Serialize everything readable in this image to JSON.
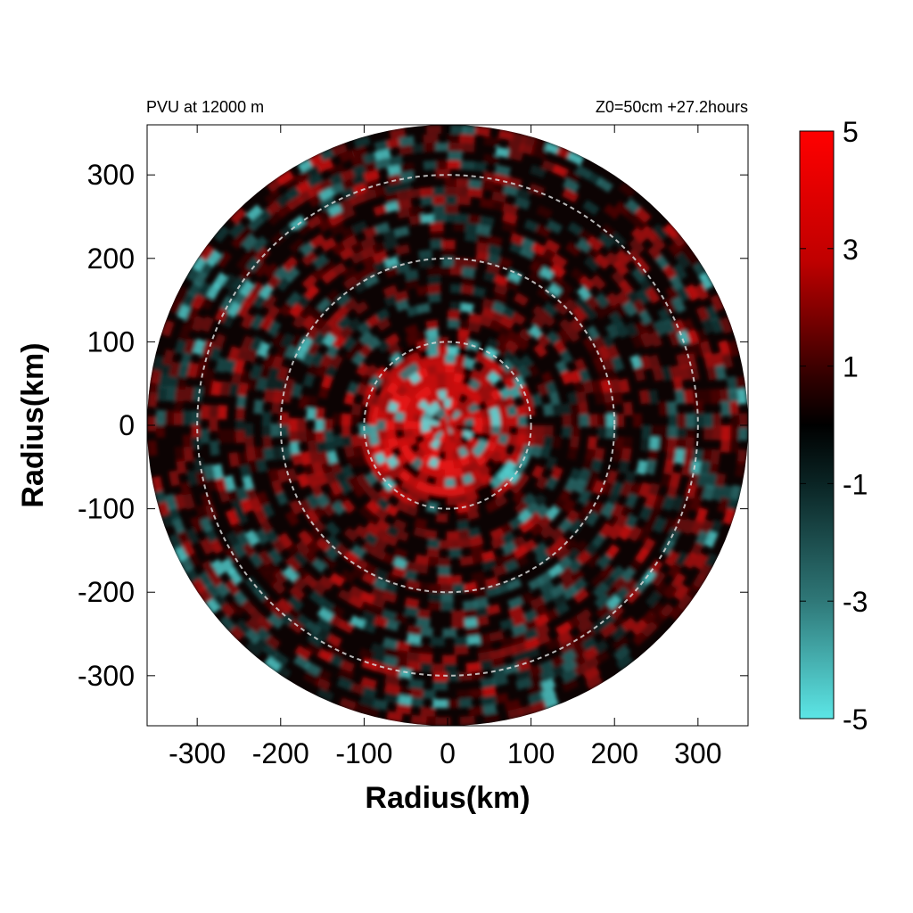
{
  "chart_data": {
    "type": "heatmap",
    "title_left": "PVU at 12000 m",
    "title_right": "Z0=50cm  +27.2hours",
    "xlabel": "Radius(km)",
    "ylabel": "Radius(km)",
    "xlim": [
      -360,
      360
    ],
    "ylim": [
      -360,
      360
    ],
    "xticks": [
      "-300",
      "-200",
      "-100",
      "0",
      "100",
      "200",
      "300"
    ],
    "yticks": [
      "300",
      "200",
      "100",
      "0",
      "-100",
      "-200",
      "-300"
    ],
    "domain_radius_km": 360,
    "reference_circles_km": [
      100,
      200,
      300
    ],
    "colorbar": {
      "min": -5,
      "max": 5,
      "ticks": [
        "5",
        "3",
        "1",
        "-1",
        "-3",
        "-5"
      ],
      "colors": {
        "high": "#ff0000",
        "mid": "#000000",
        "low": "#5ce6e6"
      }
    }
  }
}
